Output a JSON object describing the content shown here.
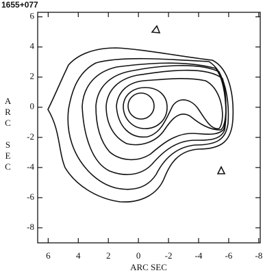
{
  "chart_data": {
    "type": "contour",
    "title": "1655+077",
    "x_label": "ARC SEC",
    "y_label": "ARC SEC",
    "xlim": [
      6.7,
      -8.1
    ],
    "ylim": [
      -9.0,
      6.3
    ],
    "xticks": [
      6,
      4,
      2,
      0,
      -2,
      -4,
      -6,
      -8
    ],
    "yticks": [
      6,
      4,
      2,
      0,
      -2,
      -4,
      -6,
      -8
    ],
    "color": "#111111"
  }
}
